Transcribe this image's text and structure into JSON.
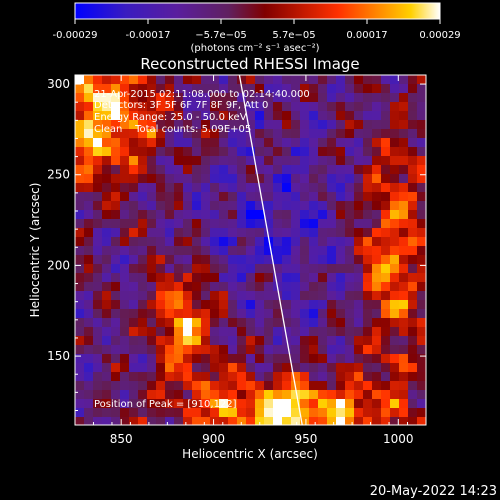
{
  "colorbar": {
    "ticks": [
      "-0.00029",
      "-0.00017",
      "−5.7e−05",
      "5.7e−05",
      "0.00017",
      "0.00029"
    ],
    "unit_label": "(photons cm⁻² s⁻¹ asec⁻²)"
  },
  "plot": {
    "annotations": {
      "time_range": "21-Apr-2015 02:11:08.000 to 02:14:40.000",
      "detectors": "Detectors: 3F 5F 6F 7F 8F 9F, Att 0",
      "energy_range": "Energy Range: 25.0 - 50.0 keV",
      "clean": "Clean    Total counts: 5.09E+05",
      "peak": "Position of Peak = [910,122]"
    }
  },
  "footer": {
    "timestamp": "20-May-2022 14:23"
  },
  "chart_data": {
    "type": "heatmap",
    "title": "Reconstructed RHESSI Image",
    "xlabel": "Heliocentric X (arcsec)",
    "ylabel": "Heliocentric Y (arcsec)",
    "xlim": [
      825,
      1015
    ],
    "ylim": [
      112,
      305
    ],
    "x_ticks": [
      850,
      900,
      950,
      1000
    ],
    "y_ticks": [
      150,
      200,
      250,
      300
    ],
    "colorbar_range": [
      -0.00029,
      0.00029
    ],
    "limb_line": [
      [
        914,
        305
      ],
      [
        948,
        112
      ]
    ],
    "peak_position": [
      910,
      122
    ]
  }
}
